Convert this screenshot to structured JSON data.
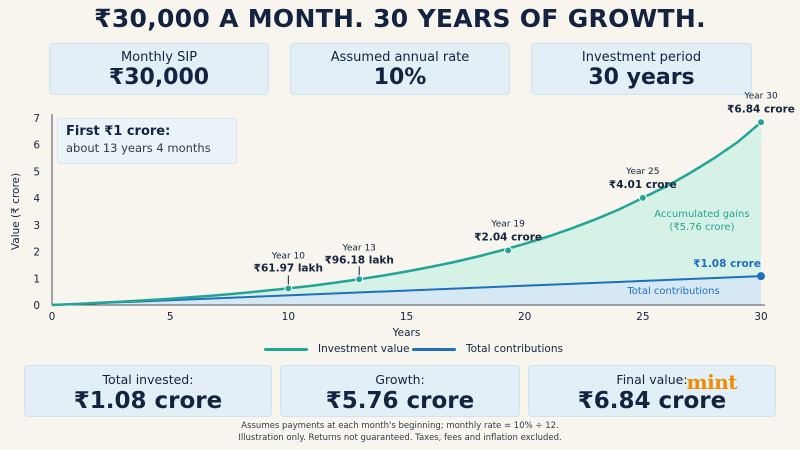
{
  "title": "₹30,000 A MONTH. 30 YEARS OF GROWTH.",
  "top_cards": [
    {
      "label": "Monthly SIP",
      "value": "₹30,000"
    },
    {
      "label": "Assumed annual rate",
      "value": "10%"
    },
    {
      "label": "Investment period",
      "value": "30 years"
    }
  ],
  "callout": {
    "title": "First ₹1 crore:",
    "text": "about 13 years 4 months"
  },
  "colors": {
    "investment": "#21a596",
    "contributions": "#1f6fc0",
    "gains_fill": "#d6f1e6",
    "contrib_fill": "#d7e8f5"
  },
  "chart_data": {
    "type": "area",
    "xlabel": "Years",
    "ylabel": "Value (₹ crore)",
    "xlim": [
      0,
      30
    ],
    "ylim": [
      0,
      7
    ],
    "xticks": [
      "0",
      "5",
      "10",
      "15",
      "20",
      "25",
      "30"
    ],
    "yticks": [
      "0",
      "1",
      "2",
      "3",
      "4",
      "5",
      "6",
      "7"
    ],
    "grid": false,
    "legend_position": "bottom",
    "series": [
      {
        "name": "Investment value",
        "x": [
          0,
          1,
          2,
          3,
          4,
          5,
          6,
          7,
          8,
          9,
          10,
          11,
          12,
          13,
          14,
          15,
          16,
          17,
          18,
          19,
          20,
          21,
          22,
          23,
          24,
          25,
          26,
          27,
          28,
          29,
          30
        ],
        "values": [
          0,
          0.0383,
          0.0806,
          0.1273,
          0.1789,
          0.2359,
          0.299,
          0.3686,
          0.4456,
          0.5306,
          0.6197,
          0.7223,
          0.8385,
          0.9618,
          1.1002,
          1.2528,
          1.4214,
          1.6076,
          1.8133,
          2.04,
          2.2898,
          2.5658,
          2.8708,
          3.2076,
          3.5797,
          4.01,
          4.4448,
          4.9394,
          5.4857,
          6.0893,
          6.84
        ]
      },
      {
        "name": "Total contributions",
        "x": [
          0,
          30
        ],
        "values": [
          0,
          1.08
        ]
      }
    ],
    "annotations": [
      {
        "year_label": "Year 10",
        "value_label": "₹61.97 lakh",
        "x": 10,
        "y": 0.6197
      },
      {
        "year_label": "Year 13",
        "value_label": "₹96.18 lakh",
        "x": 13,
        "y": 0.9618
      },
      {
        "year_label": "Year 19",
        "value_label": "₹2.04 crore",
        "x": 19.3,
        "y": 2.04
      },
      {
        "year_label": "Year 25",
        "value_label": "₹4.01 crore",
        "x": 25,
        "y": 4.01
      },
      {
        "year_label": "Year 30",
        "value_label": "₹6.84 crore",
        "x": 30,
        "y": 6.84
      }
    ],
    "contrib_end_label": "₹1.08 crore",
    "gains_label": [
      "Accumulated gains",
      "(₹5.76 crore)"
    ],
    "contrib_area_label": "Total contributions"
  },
  "legend": [
    {
      "label": "Investment value",
      "color": "#21a596"
    },
    {
      "label": "Total contributions",
      "color": "#1f6fc0"
    }
  ],
  "bottom_cards": [
    {
      "label": "Total invested:",
      "value": "₹1.08 crore"
    },
    {
      "label": "Growth:",
      "value": "₹5.76 crore"
    },
    {
      "label": "Final value:",
      "value": "₹6.84 crore"
    }
  ],
  "brand": "mint",
  "notes": [
    "Assumes payments at each month's beginning; monthly rate = 10% ÷ 12.",
    "Illustration only. Returns not guaranteed. Taxes, fees and inflation excluded."
  ]
}
